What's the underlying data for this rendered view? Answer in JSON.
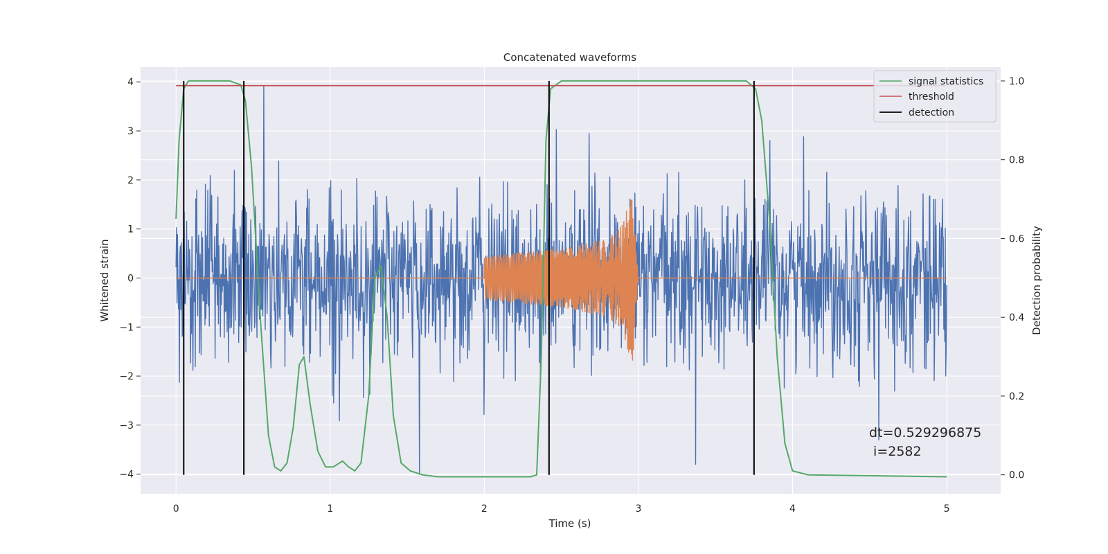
{
  "chart_data": {
    "type": "line",
    "title": "Concatenated waveforms",
    "xlabel": "Time (s)",
    "ylabel_left": "Whitened strain",
    "ylabel_right": "Detection probability",
    "xlim": [
      -0.23,
      5.35
    ],
    "ylim_left": [
      -4.4,
      4.3
    ],
    "ylim_right": [
      -0.048,
      1.035
    ],
    "x_ticks": [
      0,
      1,
      2,
      3,
      4,
      5
    ],
    "x_tick_labels": [
      "0",
      "1",
      "2",
      "3",
      "4",
      "5"
    ],
    "y_left_ticks": [
      4,
      3,
      2,
      1,
      0,
      -1,
      -2,
      -3,
      -4
    ],
    "y_left_tick_labels": [
      "4",
      "3",
      "2",
      "1",
      "0",
      "−1",
      "−2",
      "−3",
      "−4"
    ],
    "y_right_ticks": [
      1.0,
      0.8,
      0.6,
      0.4,
      0.2,
      0.0
    ],
    "y_right_tick_labels": [
      "1.0",
      "0.8",
      "0.6",
      "0.4",
      "0.2",
      "0.0"
    ],
    "grid": true,
    "legend_position": "top-right",
    "series": [
      {
        "name": "",
        "axis": "left",
        "color": "#4c72b0",
        "kind": "noise",
        "x_range": [
          0,
          5
        ],
        "amplitude_std": 0.75,
        "notable_peaks": [
          {
            "x": 0.57,
            "y": 3.92
          },
          {
            "x": 1.58,
            "y": -4.0
          },
          {
            "x": 2.68,
            "y": 2.95
          },
          {
            "x": 3.37,
            "y": -3.8
          },
          {
            "x": 4.56,
            "y": -3.3
          }
        ]
      },
      {
        "name": "",
        "axis": "left",
        "color": "#dd8452",
        "kind": "chirp",
        "x": [
          0,
          2.0,
          2.0,
          2.5,
          2.8,
          2.9,
          2.94,
          2.96,
          2.98,
          3.0,
          5.0
        ],
        "envelope": [
          0,
          0,
          0.45,
          0.6,
          0.8,
          1.1,
          1.6,
          1.9,
          0.8,
          0,
          0
        ]
      },
      {
        "name": "signal statistics",
        "axis": "right",
        "color": "#55a868",
        "x": [
          0,
          0.02,
          0.05,
          0.08,
          0.12,
          0.35,
          0.42,
          0.45,
          0.49,
          0.55,
          0.6,
          0.64,
          0.68,
          0.72,
          0.76,
          0.8,
          0.83,
          0.87,
          0.92,
          0.97,
          1.02,
          1.08,
          1.12,
          1.16,
          1.2,
          1.25,
          1.29,
          1.33,
          1.37,
          1.41,
          1.46,
          1.52,
          1.6,
          1.7,
          2.0,
          2.3,
          2.34,
          2.37,
          2.4,
          2.43,
          2.5,
          3.7,
          3.76,
          3.8,
          3.85,
          3.9,
          3.95,
          4.0,
          4.1,
          5.0
        ],
        "y": [
          0.65,
          0.85,
          0.98,
          1.0,
          1.0,
          1.0,
          0.99,
          0.95,
          0.78,
          0.38,
          0.1,
          0.02,
          0.01,
          0.03,
          0.12,
          0.28,
          0.3,
          0.18,
          0.06,
          0.02,
          0.02,
          0.035,
          0.02,
          0.01,
          0.03,
          0.2,
          0.5,
          0.53,
          0.4,
          0.15,
          0.03,
          0.01,
          0.0,
          -0.005,
          -0.005,
          -0.005,
          0.0,
          0.3,
          0.85,
          0.98,
          1.0,
          1.0,
          0.98,
          0.9,
          0.65,
          0.3,
          0.08,
          0.01,
          0.0,
          -0.005
        ]
      },
      {
        "name": "threshold",
        "axis": "right",
        "color": "#c44e52",
        "x": [
          0,
          5
        ],
        "y": [
          0.988,
          0.988
        ]
      },
      {
        "name": "detection",
        "axis": "right",
        "color": "#000000",
        "kind": "vlines",
        "x": [
          0.05,
          0.44,
          2.42,
          3.75
        ],
        "y_range": [
          0.0,
          1.0
        ]
      }
    ],
    "annotation": {
      "line1": "dt=0.529296875",
      "line2": " i=2582"
    },
    "colors": {
      "background": "#eaeaf2",
      "grid": "#ffffff",
      "noise": "#4c72b0",
      "chirp": "#dd8452",
      "stat": "#55a868",
      "threshold": "#c44e52",
      "detection": "#000000"
    }
  }
}
